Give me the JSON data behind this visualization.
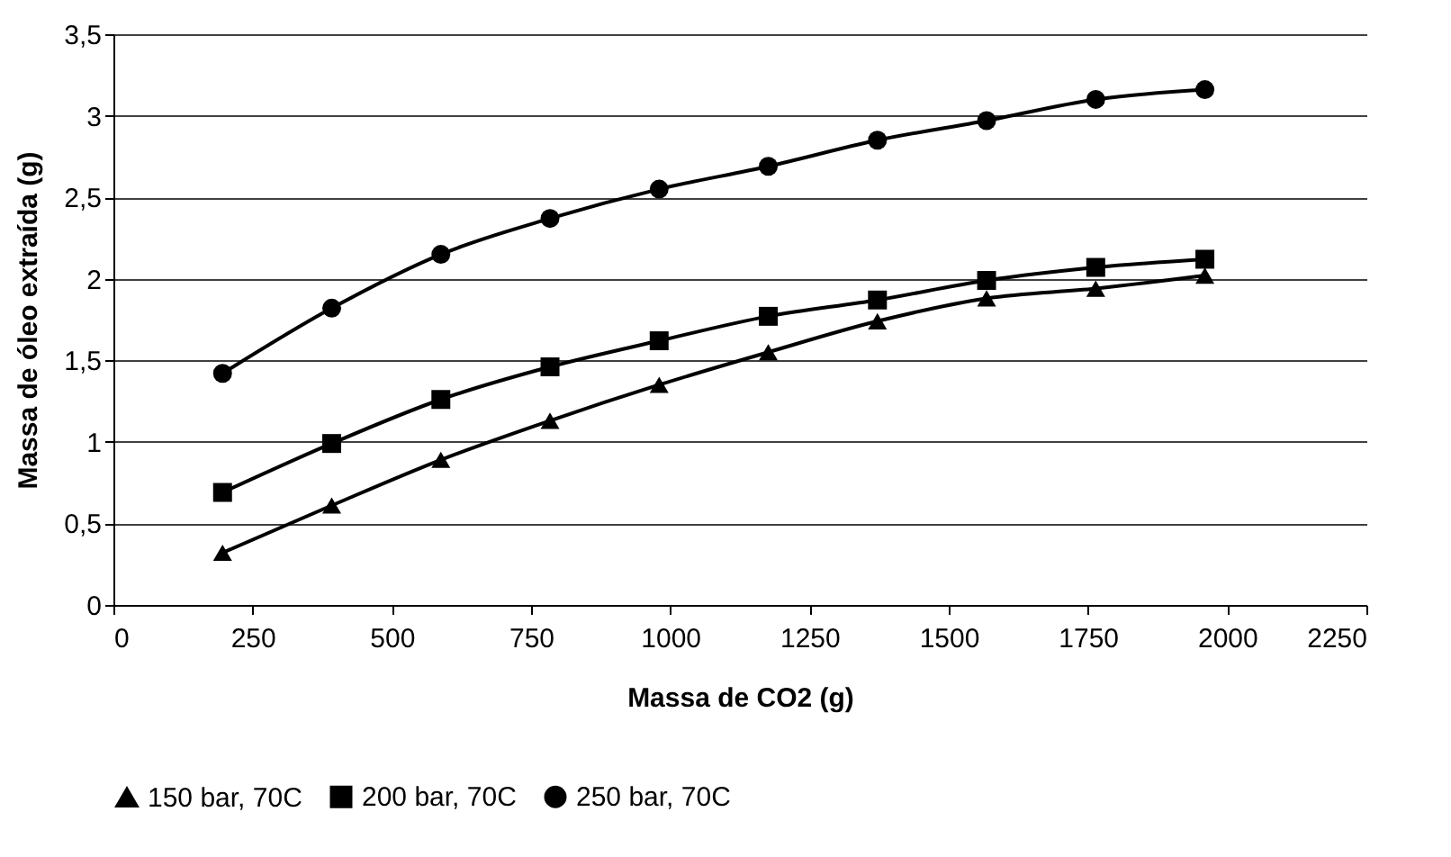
{
  "chart_data": {
    "type": "line",
    "xlabel": "Massa de CO2 (g)",
    "ylabel": "Massa de óleo extraída (g)",
    "xlim": [
      0,
      2250
    ],
    "xticks": [
      0,
      250,
      500,
      750,
      1000,
      1250,
      1500,
      1750,
      2000,
      2250
    ],
    "ylim": [
      0,
      3.5
    ],
    "yticks": [
      0,
      {
        "value": 0.5,
        "label": "0,5"
      },
      1,
      {
        "value": 1.5,
        "label": "1,5"
      },
      2,
      {
        "value": 2.5,
        "label": "2,5"
      },
      3,
      {
        "value": 3.5,
        "label": "3,5"
      }
    ],
    "grid": "y",
    "legend": "bottom",
    "x": [
      196,
      392,
      588,
      784,
      980,
      1176,
      1372,
      1568,
      1764,
      1960
    ],
    "series": [
      {
        "name": "150 bar, 70C",
        "color": "#000000",
        "marker": "triangle",
        "values": [
          0.32,
          0.61,
          0.89,
          1.13,
          1.35,
          1.55,
          1.74,
          1.88,
          1.94,
          2.02
        ]
      },
      {
        "name": "200 bar, 70C",
        "color": "#000000",
        "marker": "square",
        "values": [
          0.69,
          0.99,
          1.26,
          1.46,
          1.62,
          1.77,
          1.87,
          1.99,
          2.07,
          2.12
        ]
      },
      {
        "name": "250 bar, 70C",
        "color": "#000000",
        "marker": "circle",
        "values": [
          1.42,
          1.82,
          2.15,
          2.37,
          2.55,
          2.69,
          2.85,
          2.97,
          3.1,
          3.16
        ]
      }
    ]
  }
}
